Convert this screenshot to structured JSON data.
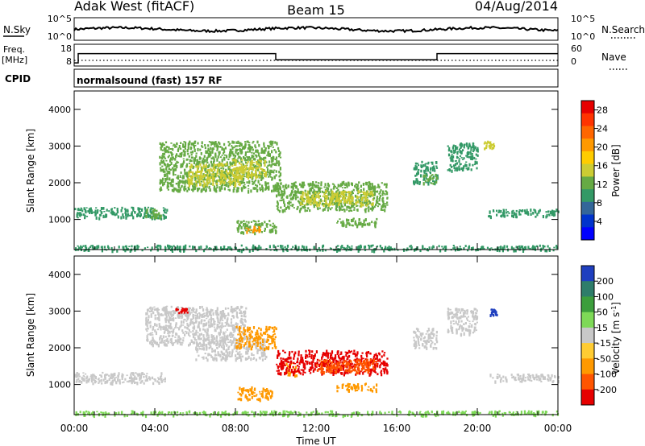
{
  "header": {
    "station": "Adak West (fitACF)",
    "beam": "Beam 15",
    "date": "04/Aug/2014"
  },
  "noise_panel": {
    "left_label": "N.Sky",
    "right_label": "N.Search",
    "left_ticks": [
      "10^5",
      "10^0"
    ],
    "right_ticks": [
      "10^5",
      "10^0"
    ]
  },
  "freq_panel": {
    "left_label_1": "Freq.",
    "left_label_2": "[MHz]",
    "right_label": "Nave",
    "left_ticks": [
      "18",
      "8"
    ],
    "right_ticks": [
      "60",
      "0"
    ],
    "freq_steps": [
      {
        "from_hour": 0.0,
        "to_hour": 0.2,
        "freq_mhz": 8
      },
      {
        "from_hour": 0.2,
        "to_hour": 10.0,
        "freq_mhz": 14
      },
      {
        "from_hour": 10.0,
        "to_hour": 18.0,
        "freq_mhz": 10
      },
      {
        "from_hour": 18.0,
        "to_hour": 24.0,
        "freq_mhz": 14
      }
    ]
  },
  "cpid": {
    "label": "CPID",
    "program": "normalsound (fast) 157 RF"
  },
  "xaxis": {
    "label": "Time UT",
    "ticks": [
      "00:00",
      "04:00",
      "08:00",
      "12:00",
      "16:00",
      "20:00",
      "00:00"
    ],
    "range_hours": [
      0,
      24
    ]
  },
  "power_panel": {
    "ylabel": "Slant Range [km]",
    "yticks": [
      "4000",
      "3000",
      "2000",
      "1000"
    ],
    "ylim": [
      180,
      4500
    ],
    "colorbar_label": "Power [dB]",
    "colorbar_ticks": [
      "28",
      "24",
      "20",
      "16",
      "12",
      "8",
      "4"
    ],
    "colorbar_colors": [
      "#e60000",
      "#ff3300",
      "#ff6600",
      "#ff9900",
      "#ffcc00",
      "#cccc33",
      "#66aa44",
      "#339966",
      "#336699",
      "#0033cc",
      "#0000ff"
    ]
  },
  "velocity_panel": {
    "ylabel": "Slant Range [km]",
    "yticks": [
      "4000",
      "3000",
      "2000",
      "1000"
    ],
    "ylim": [
      180,
      4500
    ],
    "colorbar_label": "Velocity [m s",
    "colorbar_label_sup": "-1",
    "colorbar_label_end": "]",
    "colorbar_ticks": [
      "200",
      "100",
      "50",
      "15",
      "-15",
      "-50",
      "-100",
      "-200"
    ],
    "colorbar_colors": [
      "#1f3fbf",
      "#2e7d6a",
      "#3c9e3c",
      "#7ed957",
      "#c8c8c8",
      "#ffcc33",
      "#ff9900",
      "#ff5500",
      "#e60000"
    ]
  },
  "chart_data": {
    "type": "heatmap",
    "x_units": "hours UT",
    "y_units": "km",
    "power_patches": [
      {
        "x0": 0.0,
        "x1": 4.6,
        "y0": 1050,
        "y1": 1350,
        "db": 8
      },
      {
        "x0": 3.5,
        "x1": 4.3,
        "y0": 1050,
        "y1": 1300,
        "db": 12
      },
      {
        "x0": 4.2,
        "x1": 10.2,
        "y0": 1800,
        "y1": 3150,
        "db": 12
      },
      {
        "x0": 5.6,
        "x1": 8.3,
        "y0": 1950,
        "y1": 2550,
        "db": 16
      },
      {
        "x0": 7.8,
        "x1": 9.5,
        "y0": 2150,
        "y1": 2650,
        "db": 16
      },
      {
        "x0": 8.0,
        "x1": 10.0,
        "y0": 650,
        "y1": 1000,
        "db": 12
      },
      {
        "x0": 8.4,
        "x1": 9.2,
        "y0": 680,
        "y1": 850,
        "db": 20
      },
      {
        "x0": 10.0,
        "x1": 15.5,
        "y0": 1250,
        "y1": 2050,
        "db": 12
      },
      {
        "x0": 11.2,
        "x1": 14.8,
        "y0": 1400,
        "y1": 1800,
        "db": 16
      },
      {
        "x0": 13.0,
        "x1": 15.0,
        "y0": 850,
        "y1": 1050,
        "db": 12
      },
      {
        "x0": 16.8,
        "x1": 18.0,
        "y0": 2000,
        "y1": 2600,
        "db": 8
      },
      {
        "x0": 17.2,
        "x1": 18.0,
        "y0": 2000,
        "y1": 2250,
        "db": 12
      },
      {
        "x0": 18.5,
        "x1": 20.0,
        "y0": 2350,
        "y1": 3100,
        "db": 8
      },
      {
        "x0": 20.3,
        "x1": 20.8,
        "y0": 2950,
        "y1": 3150,
        "db": 16
      },
      {
        "x0": 20.5,
        "x1": 24.0,
        "y0": 1100,
        "y1": 1300,
        "db": 8
      },
      {
        "x0": 0.0,
        "x1": 24.0,
        "y0": 180,
        "y1": 320,
        "db": 8
      }
    ],
    "velocity_patches": [
      {
        "x0": 0.0,
        "x1": 4.6,
        "y0": 1050,
        "y1": 1350,
        "v": 0
      },
      {
        "x0": 3.5,
        "x1": 8.5,
        "y0": 2100,
        "y1": 3150,
        "v": 0
      },
      {
        "x0": 6.0,
        "x1": 9.5,
        "y0": 1700,
        "y1": 2300,
        "v": 0
      },
      {
        "x0": 5.0,
        "x1": 5.6,
        "y0": 2950,
        "y1": 3100,
        "v": -250
      },
      {
        "x0": 8.0,
        "x1": 10.0,
        "y0": 2000,
        "y1": 2600,
        "v": -60
      },
      {
        "x0": 8.0,
        "x1": 9.8,
        "y0": 600,
        "y1": 950,
        "v": -80
      },
      {
        "x0": 10.5,
        "x1": 11.0,
        "y0": 1250,
        "y1": 1600,
        "v": -80
      },
      {
        "x0": 10.0,
        "x1": 15.5,
        "y0": 1300,
        "y1": 1950,
        "v": -250
      },
      {
        "x0": 12.0,
        "x1": 15.0,
        "y0": 1350,
        "y1": 1700,
        "v": -150
      },
      {
        "x0": 13.0,
        "x1": 15.0,
        "y0": 850,
        "y1": 1050,
        "v": -80
      },
      {
        "x0": 16.8,
        "x1": 18.0,
        "y0": 2000,
        "y1": 2550,
        "v": 0
      },
      {
        "x0": 18.5,
        "x1": 20.0,
        "y0": 2400,
        "y1": 3100,
        "v": 0
      },
      {
        "x0": 20.6,
        "x1": 21.0,
        "y0": 2900,
        "y1": 3100,
        "v": 200
      },
      {
        "x0": 20.5,
        "x1": 24.0,
        "y0": 1100,
        "y1": 1300,
        "v": 0
      },
      {
        "x0": 0.0,
        "x1": 24.0,
        "y0": 180,
        "y1": 300,
        "v": 30
      }
    ]
  }
}
